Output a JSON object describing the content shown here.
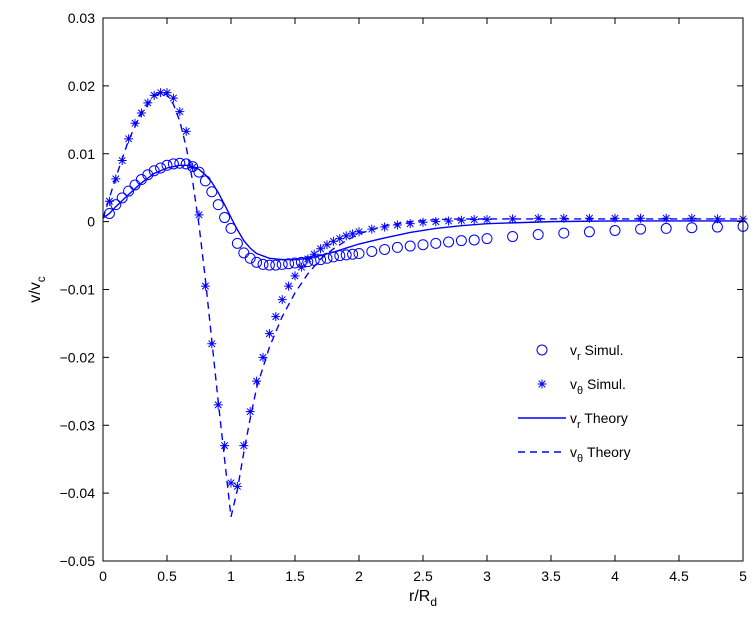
{
  "chart_data": {
    "type": "line",
    "xlabel": {
      "main": "r/R",
      "sub": "d"
    },
    "ylabel": {
      "main": "v/v",
      "sub": "c"
    },
    "xlim": [
      0,
      5
    ],
    "ylim": [
      -0.05,
      0.03
    ],
    "xticks": [
      0,
      0.5,
      1,
      1.5,
      2,
      2.5,
      3,
      3.5,
      4,
      4.5,
      5
    ],
    "xtick_labels": [
      "0",
      "0.5",
      "1",
      "1.5",
      "2",
      "2.5",
      "3",
      "3.5",
      "4",
      "4.5",
      "5"
    ],
    "yticks": [
      -0.05,
      -0.04,
      -0.03,
      -0.02,
      -0.01,
      0,
      0.01,
      0.02,
      0.03
    ],
    "ytick_labels": [
      "−0.05",
      "−0.04",
      "−0.03",
      "−0.02",
      "−0.01",
      "0",
      "0.01",
      "0.02",
      "0.03"
    ],
    "grid": false,
    "legend_position": "center-right",
    "color": "#0000ff",
    "series": [
      {
        "name": {
          "main": "v",
          "sub": "r",
          "rest": " Simul."
        },
        "style": "circle-markers",
        "x": [
          0.05,
          0.1,
          0.15,
          0.2,
          0.25,
          0.3,
          0.35,
          0.4,
          0.45,
          0.5,
          0.55,
          0.6,
          0.65,
          0.7,
          0.75,
          0.8,
          0.85,
          0.9,
          0.95,
          1.0,
          1.05,
          1.1,
          1.15,
          1.2,
          1.25,
          1.3,
          1.35,
          1.4,
          1.45,
          1.5,
          1.55,
          1.6,
          1.65,
          1.7,
          1.75,
          1.8,
          1.85,
          1.9,
          1.95,
          2.0,
          2.1,
          2.2,
          2.3,
          2.4,
          2.5,
          2.6,
          2.7,
          2.8,
          2.9,
          3.0,
          3.2,
          3.4,
          3.6,
          3.8,
          4.0,
          4.2,
          4.4,
          4.6,
          4.8,
          5.0
        ],
        "y": [
          0.0012,
          0.0025,
          0.0035,
          0.0045,
          0.0054,
          0.0062,
          0.0069,
          0.0075,
          0.0079,
          0.0083,
          0.0085,
          0.0086,
          0.0085,
          0.0081,
          0.0073,
          0.006,
          0.0044,
          0.0025,
          0.0006,
          -0.001,
          -0.0032,
          -0.0046,
          -0.0054,
          -0.006,
          -0.0063,
          -0.0064,
          -0.0064,
          -0.0063,
          -0.0062,
          -0.0061,
          -0.006,
          -0.0059,
          -0.0057,
          -0.0056,
          -0.0054,
          -0.0052,
          -0.005,
          -0.0049,
          -0.0048,
          -0.0047,
          -0.0044,
          -0.0041,
          -0.0038,
          -0.0036,
          -0.0034,
          -0.0032,
          -0.003,
          -0.0028,
          -0.0027,
          -0.0025,
          -0.0022,
          -0.0019,
          -0.0017,
          -0.0015,
          -0.0013,
          -0.0011,
          -0.001,
          -0.0009,
          -0.0008,
          -0.0007
        ]
      },
      {
        "name": {
          "main": "v",
          "sub": "θ",
          "rest": " Simul."
        },
        "style": "star-markers",
        "x": [
          0.05,
          0.1,
          0.15,
          0.2,
          0.25,
          0.3,
          0.35,
          0.4,
          0.45,
          0.5,
          0.55,
          0.6,
          0.65,
          0.7,
          0.75,
          0.8,
          0.85,
          0.9,
          0.95,
          1.0,
          1.05,
          1.1,
          1.15,
          1.2,
          1.25,
          1.3,
          1.35,
          1.4,
          1.45,
          1.5,
          1.55,
          1.6,
          1.65,
          1.7,
          1.75,
          1.8,
          1.85,
          1.9,
          1.95,
          2.0,
          2.1,
          2.2,
          2.3,
          2.4,
          2.5,
          2.6,
          2.7,
          2.8,
          2.9,
          3.0,
          3.2,
          3.4,
          3.6,
          3.8,
          4.0,
          4.2,
          4.4,
          4.6,
          4.8,
          5.0
        ],
        "y": [
          0.003,
          0.0063,
          0.009,
          0.0122,
          0.0145,
          0.016,
          0.0175,
          0.0186,
          0.019,
          0.019,
          0.0182,
          0.0162,
          0.0133,
          0.008,
          0.001,
          -0.0095,
          -0.018,
          -0.027,
          -0.033,
          -0.0385,
          -0.039,
          -0.033,
          -0.028,
          -0.0235,
          -0.02,
          -0.0165,
          -0.014,
          -0.0115,
          -0.0095,
          -0.008,
          -0.0067,
          -0.0055,
          -0.0048,
          -0.004,
          -0.0034,
          -0.0029,
          -0.0025,
          -0.0021,
          -0.0018,
          -0.0015,
          -0.0011,
          -0.0008,
          -0.0005,
          -0.0003,
          -0.0001,
          0.0,
          0.0001,
          0.0002,
          0.0003,
          0.0003,
          0.0004,
          0.0005,
          0.0005,
          0.0005,
          0.0005,
          0.0005,
          0.0005,
          0.0005,
          0.0004,
          0.0004
        ]
      },
      {
        "name": {
          "main": "v",
          "sub": "r",
          "rest": " Theory"
        },
        "style": "solid",
        "x": [
          0,
          0.05,
          0.1,
          0.2,
          0.3,
          0.4,
          0.5,
          0.6,
          0.65,
          0.7,
          0.75,
          0.8,
          0.85,
          0.9,
          0.95,
          1.0,
          1.05,
          1.1,
          1.15,
          1.2,
          1.3,
          1.4,
          1.5,
          1.6,
          1.7,
          1.8,
          1.9,
          2.0,
          2.2,
          2.4,
          2.6,
          2.8,
          3.0,
          3.5,
          4.0,
          4.5,
          5.0
        ],
        "y": [
          0.0005,
          0.0012,
          0.0022,
          0.004,
          0.0057,
          0.0071,
          0.0079,
          0.0083,
          0.0083,
          0.0081,
          0.0077,
          0.0069,
          0.0058,
          0.0043,
          0.0025,
          0.0006,
          -0.0012,
          -0.0028,
          -0.0039,
          -0.0047,
          -0.0054,
          -0.0056,
          -0.0056,
          -0.0054,
          -0.005,
          -0.0045,
          -0.0039,
          -0.0033,
          -0.0024,
          -0.0016,
          -0.001,
          -0.0006,
          -0.0003,
          0.0,
          0.0001,
          0.0001,
          0.0001
        ]
      },
      {
        "name": {
          "main": "v",
          "sub": "θ",
          "rest": " Theory"
        },
        "style": "dashed",
        "x": [
          0,
          0.05,
          0.1,
          0.2,
          0.3,
          0.4,
          0.45,
          0.5,
          0.55,
          0.6,
          0.65,
          0.7,
          0.75,
          0.8,
          0.85,
          0.9,
          0.95,
          1.0,
          1.05,
          1.1,
          1.15,
          1.2,
          1.3,
          1.4,
          1.5,
          1.6,
          1.7,
          1.8,
          1.9,
          2.0,
          2.2,
          2.4,
          2.6,
          2.8,
          3.0,
          3.5,
          4.0,
          4.5,
          5.0
        ],
        "y": [
          0.0005,
          0.0035,
          0.0065,
          0.012,
          0.016,
          0.0185,
          0.019,
          0.0187,
          0.0173,
          0.0148,
          0.011,
          0.006,
          -0.0005,
          -0.0085,
          -0.0175,
          -0.0265,
          -0.035,
          -0.0435,
          -0.0395,
          -0.034,
          -0.029,
          -0.0245,
          -0.0185,
          -0.014,
          -0.0105,
          -0.0077,
          -0.0055,
          -0.004,
          -0.0028,
          -0.0018,
          -0.0006,
          0.0,
          0.0003,
          0.0004,
          0.0004,
          0.0004,
          0.0004,
          0.0004,
          0.0004
        ]
      }
    ]
  }
}
